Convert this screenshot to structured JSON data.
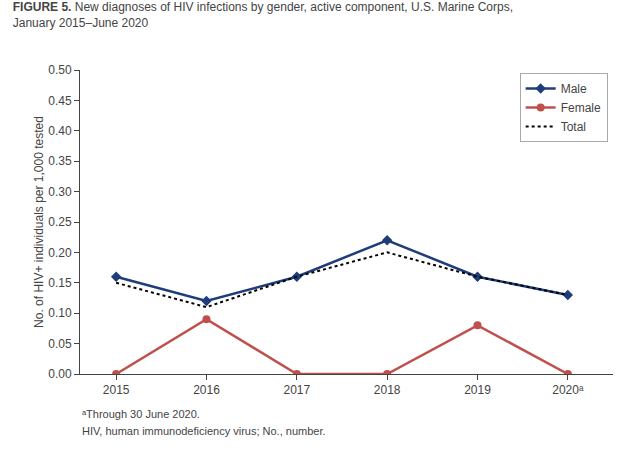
{
  "chart_data": {
    "type": "line",
    "title": "FIGURE 5. New diagnoses of HIV infections by gender, active component, U.S. Marine Corps,\nJanuary 2015–June 2020",
    "y_label": "No. of HIV+ individuals per 1,000 tested",
    "x": [
      2015,
      2016,
      2017,
      2018,
      2019,
      2020
    ],
    "series": [
      {
        "name": "Male",
        "color": "#1f3d7a",
        "marker": "diamond",
        "line_style": "solid",
        "values": [
          0.16,
          0.12,
          0.16,
          0.22,
          0.16,
          0.13
        ]
      },
      {
        "name": "Female",
        "color": "#c0504d",
        "marker": "circle",
        "line_style": "solid",
        "values": [
          0.0,
          0.09,
          0.0,
          0.0,
          0.08,
          0.0
        ]
      },
      {
        "name": "Total",
        "color": "#000000",
        "line_style": "dotted",
        "values": [
          0.15,
          0.11,
          0.16,
          0.2,
          0.16,
          0.13
        ]
      }
    ],
    "xlim": [
      2014.6,
      2020.5
    ],
    "xticks": [
      2015,
      2016,
      2017,
      2018,
      2019,
      {
        "value": 2020,
        "label": "2020ᵃ"
      }
    ],
    "ylim": [
      0,
      0.5
    ],
    "yticks": [
      {
        "value": 0,
        "label": "0.00"
      },
      {
        "value": 0.05,
        "label": "0.05"
      },
      {
        "value": 0.1,
        "label": "0.10"
      },
      {
        "value": 0.15,
        "label": "0.15"
      },
      {
        "value": 0.2,
        "label": "0.20"
      },
      {
        "value": 0.25,
        "label": "0.25"
      },
      {
        "value": 0.3,
        "label": "0.30"
      },
      {
        "value": 0.35,
        "label": "0.35"
      },
      {
        "value": 0.4,
        "label": "0.40"
      },
      {
        "value": 0.45,
        "label": "0.45"
      },
      {
        "value": 0.5,
        "label": "0.50"
      }
    ],
    "annotations": [
      "ᵃThrough 30 June 2020.",
      "HIV, human immunodeficiency virus; No., number."
    ],
    "legend": "upper right",
    "grid": false
  }
}
